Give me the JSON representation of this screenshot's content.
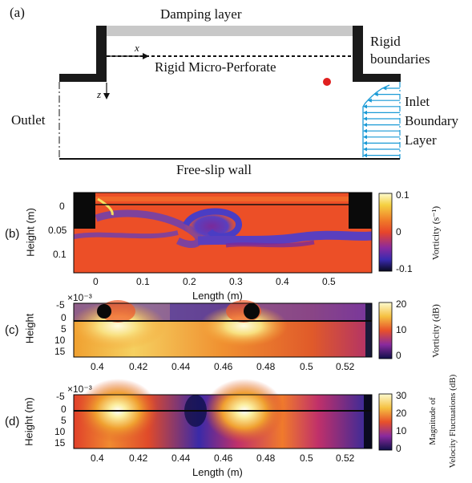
{
  "schematic": {
    "panel_label": "(a)",
    "damping_layer": "Damping layer",
    "rigid_boundaries": [
      "Rigid",
      "boundaries"
    ],
    "x_axis": "x",
    "z_axis": "z",
    "micro_perforate": "Rigid Micro-Perforate",
    "outlet": "Outlet",
    "inlet": [
      "Inlet",
      "Boundary",
      "Layer"
    ],
    "free_slip": "Free-slip wall"
  },
  "panel_b": {
    "label": "(b)",
    "ylabel": "Height (m)",
    "xlabel": "Length (m)",
    "yticks": [
      "0",
      "0.05",
      "0.1"
    ],
    "xticks": [
      "0",
      "0.1",
      "0.2",
      "0.3",
      "0.4",
      "0.5"
    ],
    "cbar_ticks": [
      "0.1",
      "0",
      "-0.1"
    ],
    "cbar_label": "Vorticity (s⁻¹)"
  },
  "panel_c": {
    "label": "(c)",
    "ylabel": "Height",
    "exponent": "×10⁻³",
    "yticks": [
      "-5",
      "0",
      "5",
      "10",
      "15"
    ],
    "xticks": [
      "0.4",
      "0.42",
      "0.44",
      "0.46",
      "0.48",
      "0.5",
      "0.52"
    ],
    "cbar_ticks": [
      "20",
      "10",
      "0"
    ],
    "cbar_label": "Vorticity (dB)"
  },
  "panel_d": {
    "label": "(d)",
    "ylabel": "Height (m)",
    "xlabel": "Length (m)",
    "exponent": "×10⁻³",
    "yticks": [
      "-5",
      "0",
      "5",
      "10",
      "15"
    ],
    "xticks": [
      "0.4",
      "0.42",
      "0.44",
      "0.46",
      "0.48",
      "0.5",
      "0.52"
    ],
    "cbar_ticks": [
      "30",
      "20",
      "10",
      "0"
    ],
    "cbar_label": [
      "Magnitude of",
      "Velocity Fluctuations (dB)"
    ]
  },
  "colors": {
    "damping": "#c8c8c8",
    "rigid": "#1a1a1a",
    "inlet_arrows": "#1a9ad6",
    "probe": "#e0201f"
  }
}
